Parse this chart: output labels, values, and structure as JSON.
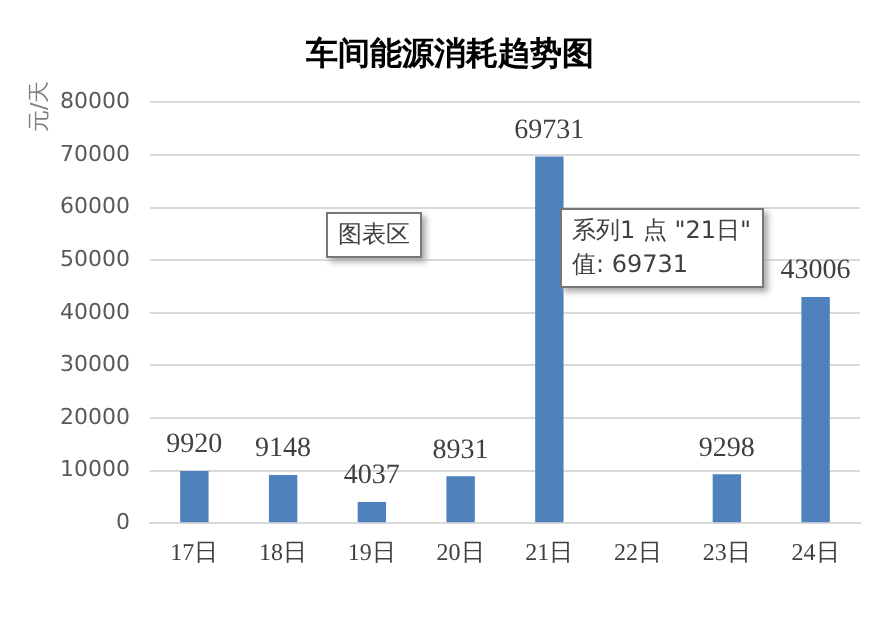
{
  "chart_data": {
    "type": "bar",
    "title": "车间能源消耗趋势图",
    "ylabel": "元/天",
    "categories": [
      "17日",
      "18日",
      "19日",
      "20日",
      "21日",
      "22日",
      "23日",
      "24日"
    ],
    "values": [
      9920,
      9148,
      4037,
      8931,
      69731,
      null,
      9298,
      43006
    ],
    "color": "#4f81bd",
    "ylim": [
      0,
      80000
    ],
    "yticks": [
      0,
      10000,
      20000,
      30000,
      40000,
      50000,
      60000,
      70000,
      80000
    ],
    "grid": "y",
    "legend": false,
    "data_labels": true,
    "annotations": [
      "图表区",
      "系列1 点 \"21日\"\n值: 69731"
    ]
  }
}
